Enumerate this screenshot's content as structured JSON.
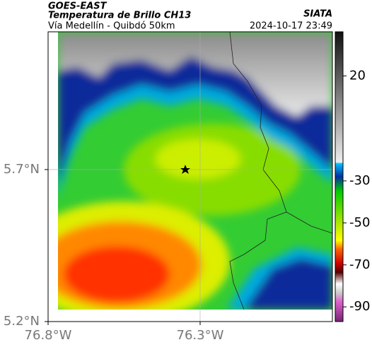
{
  "header": {
    "title": "GOES-EAST",
    "subtitle": "Temperatura de Brillo CH13",
    "location": "Vía Medellín - Quibdó 50km",
    "source": "SIATA",
    "timestamp": "2024-10-17 23:49"
  },
  "map": {
    "latlim": [
      5.2,
      6.153
    ],
    "lonlim": [
      -76.8,
      -75.865
    ],
    "yticks": [
      {
        "value": 5.7,
        "label": "5.7°N"
      },
      {
        "value": 5.2,
        "label": "5.2°N"
      }
    ],
    "xticks": [
      {
        "value": -76.8,
        "label": "76.8°W"
      },
      {
        "value": -76.3,
        "label": "76.3°W"
      }
    ],
    "grid": true
  },
  "colorbar": {
    "lim": [
      -97,
      41
    ],
    "ticks": [
      20,
      -30,
      -50,
      -70,
      -90
    ]
  }
}
